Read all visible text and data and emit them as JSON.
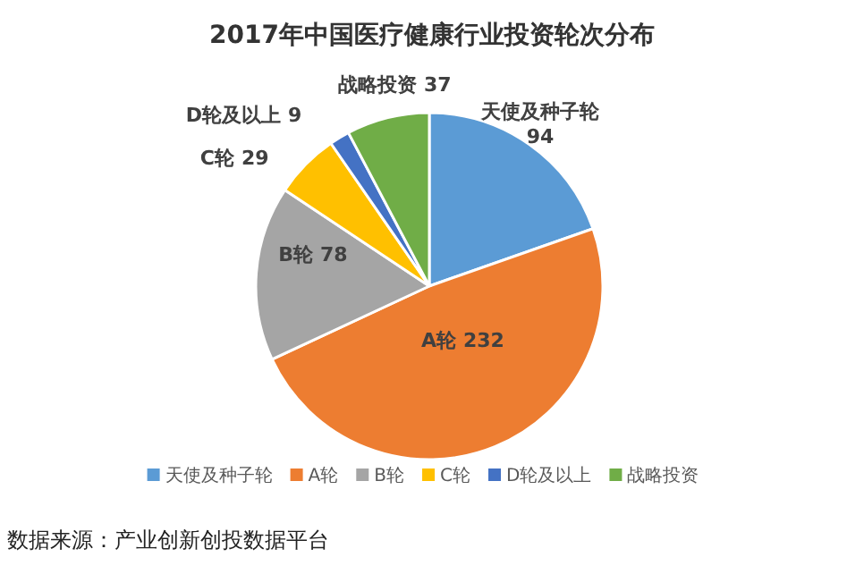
{
  "chart_data": {
    "type": "pie",
    "title": "2017年中国医疗健康行业投资轮次分布",
    "categories": [
      "天使及种子轮",
      "A轮",
      "B轮",
      "C轮",
      "D轮及以上",
      "战略投资"
    ],
    "values": [
      94,
      232,
      78,
      29,
      9,
      37
    ],
    "colors": [
      "#5b9bd5",
      "#ed7d31",
      "#a5a5a5",
      "#ffc000",
      "#4472c4",
      "#70ad47"
    ],
    "data_labels": true,
    "legend": "bottom",
    "annotations": [
      "数据来源：产业创新创投数据平台"
    ]
  }
}
